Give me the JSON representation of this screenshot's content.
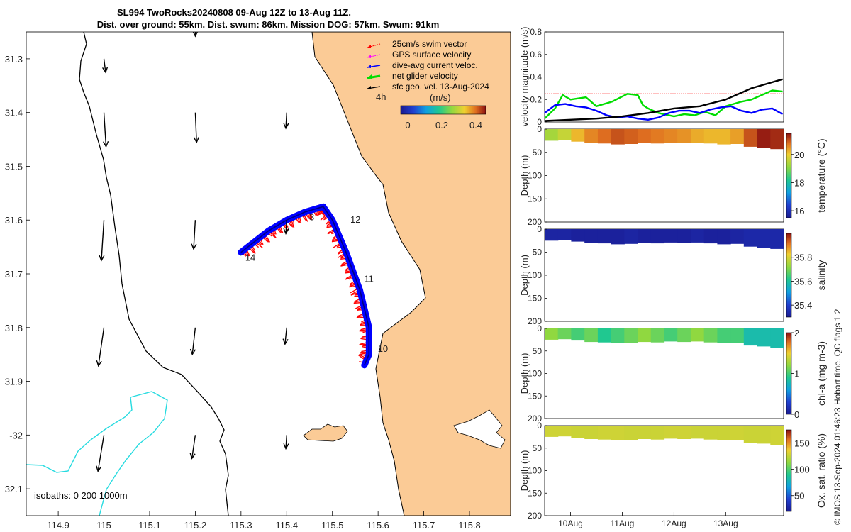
{
  "chart_data": [
    {
      "type": "map",
      "title_line1": "SL994 TwoRocks20240808 09-Aug 12Z to 13-Aug 11Z.",
      "title_line2": "Dist. over ground: 55km. Dist. swum: 86km. Mission DOG: 57km. Swum: 91km",
      "xlim": [
        114.83,
        115.89
      ],
      "ylim": [
        -32.15,
        -31.25
      ],
      "xticks": [
        114.9,
        115,
        115.1,
        115.2,
        115.3,
        115.4,
        115.5,
        115.6,
        115.7,
        115.8
      ],
      "xtick_labels": [
        "114.9",
        "115",
        "115.1",
        "115.2",
        "115.3",
        "115.4",
        "115.5",
        "115.6",
        "115.7",
        "115.8"
      ],
      "yticks": [
        -31.3,
        -31.4,
        -31.5,
        -31.6,
        -31.7,
        -31.8,
        -31.9,
        -32,
        -32.1
      ],
      "ytick_labels": [
        "31.3",
        "31.4",
        "31.5",
        "31.6",
        "31.7",
        "31.8",
        "31.9",
        "-32",
        "32.1"
      ],
      "legend": [
        {
          "label": "25cm/s swim vector",
          "color": "#ff0000"
        },
        {
          "label": "GPS surface velocity",
          "color": "#ff00ff"
        },
        {
          "label": "dive-avg current veloc.",
          "color": "#0000ff"
        },
        {
          "label": "net glider velocity",
          "color": "#00dd00"
        },
        {
          "label": "sfc geo. vel. 13-Aug-2024",
          "color": "#000000"
        }
      ],
      "scale_label": "4h",
      "colorbar_label": "(m/s)",
      "colorbar_ticks": [
        "0",
        "0.2",
        "0.4"
      ],
      "isobath_note": "isobaths: 0   200  1000m",
      "track": {
        "lon": [
          115.3,
          115.33,
          115.36,
          115.4,
          115.44,
          115.48,
          115.5,
          115.53,
          115.56,
          115.58,
          115.58,
          115.57
        ],
        "lat": [
          -31.66,
          -31.64,
          -31.62,
          -31.6,
          -31.585,
          -31.575,
          -31.6,
          -31.66,
          -31.73,
          -31.8,
          -31.85,
          -31.87
        ],
        "day_labels": [
          {
            "label": "14",
            "lon": 115.3,
            "lat": -31.67
          },
          {
            "label": "3",
            "lon": 115.44,
            "lat": -31.595
          },
          {
            "label": "12",
            "lon": 115.53,
            "lat": -31.6
          },
          {
            "label": "11",
            "lon": 115.56,
            "lat": -31.71
          },
          {
            "label": "10",
            "lon": 115.59,
            "lat": -31.84
          }
        ]
      },
      "geo_vectors": [
        {
          "lon": 115.0,
          "lat": -31.3,
          "u": 0.4,
          "v": -3.2
        },
        {
          "lon": 115.0,
          "lat": -31.4,
          "u": 0.5,
          "v": -8.0
        },
        {
          "lon": 115.2,
          "lat": -31.4,
          "u": 0.3,
          "v": -7.0
        },
        {
          "lon": 115.4,
          "lat": -31.4,
          "u": -0.2,
          "v": -3.7
        },
        {
          "lon": 115.0,
          "lat": -31.6,
          "u": -0.6,
          "v": -9.5
        },
        {
          "lon": 115.2,
          "lat": -31.6,
          "u": -0.4,
          "v": -6.8
        },
        {
          "lon": 115.4,
          "lat": -31.6,
          "u": -0.2,
          "v": -3.2
        },
        {
          "lon": 115.0,
          "lat": -31.8,
          "u": -1.3,
          "v": -9.0
        },
        {
          "lon": 115.2,
          "lat": -31.8,
          "u": -0.7,
          "v": -6.3
        },
        {
          "lon": 115.4,
          "lat": -31.8,
          "u": -0.4,
          "v": -3.9
        },
        {
          "lon": 115.0,
          "lat": -32.0,
          "u": -1.4,
          "v": -8.5
        },
        {
          "lon": 115.2,
          "lat": -32.0,
          "u": -0.8,
          "v": -5.5
        },
        {
          "lon": 115.4,
          "lat": -32.0,
          "u": -0.2,
          "v": -3.2
        },
        {
          "lon": 115.2,
          "lat": -31.25,
          "u": 0.0,
          "v": -1.0
        }
      ]
    },
    {
      "type": "line",
      "ylabel": "velocity magnitude (m/s)",
      "ylim": [
        0,
        0.8
      ],
      "yticks": [
        "0",
        "0.2",
        "0.4",
        "0.6",
        "0.8"
      ],
      "xlim": [
        0,
        4.62
      ],
      "series": [
        {
          "name": "swim speed 25cm/s",
          "color": "#ff0000",
          "x": [
            0,
            4.62
          ],
          "values": [
            0.25,
            0.25
          ]
        },
        {
          "name": "net glider velocity",
          "color": "#00dd00",
          "x": [
            0.0,
            0.2,
            0.35,
            0.5,
            0.8,
            1.0,
            1.3,
            1.6,
            1.8,
            1.9,
            2.0,
            2.2,
            2.5,
            2.7,
            2.9,
            3.1,
            3.3,
            3.5,
            3.8,
            4.0,
            4.2,
            4.4,
            4.6
          ],
          "values": [
            0.03,
            0.12,
            0.24,
            0.2,
            0.22,
            0.14,
            0.18,
            0.25,
            0.24,
            0.15,
            0.12,
            0.08,
            0.05,
            0.07,
            0.06,
            0.09,
            0.06,
            0.14,
            0.18,
            0.2,
            0.24,
            0.28,
            0.27
          ]
        },
        {
          "name": "dive-avg current",
          "color": "#0000ff",
          "x": [
            0.0,
            0.2,
            0.4,
            0.6,
            0.8,
            1.0,
            1.2,
            1.4,
            1.6,
            1.8,
            2.0,
            2.2,
            2.4,
            2.6,
            2.8,
            3.0,
            3.2,
            3.4,
            3.6,
            3.8,
            4.0,
            4.2,
            4.4,
            4.6
          ],
          "values": [
            0.08,
            0.15,
            0.16,
            0.14,
            0.13,
            0.1,
            0.06,
            0.04,
            0.05,
            0.03,
            0.02,
            0.04,
            0.08,
            0.1,
            0.1,
            0.08,
            0.11,
            0.13,
            0.14,
            0.1,
            0.08,
            0.11,
            0.12,
            0.07
          ]
        },
        {
          "name": "sfc geo. vel.",
          "color": "#000000",
          "x": [
            0.0,
            0.5,
            1.0,
            1.5,
            2.0,
            2.5,
            3.0,
            3.5,
            4.0,
            4.3,
            4.6
          ],
          "values": [
            0.01,
            0.02,
            0.03,
            0.05,
            0.08,
            0.12,
            0.14,
            0.2,
            0.3,
            0.34,
            0.38
          ]
        }
      ]
    },
    {
      "type": "heatmap",
      "ylabel": "Depth (m)",
      "cbar_label": "temperature (°C)",
      "ylim": [
        0,
        200
      ],
      "yticks": [
        "0",
        "50",
        "100",
        "150",
        "200"
      ],
      "clim": [
        15.5,
        21.5
      ],
      "cbar_ticks": [
        "16",
        "18",
        "20"
      ],
      "cbar_tick_values": [
        16,
        18,
        20
      ],
      "profile_depths": [
        25,
        24,
        27,
        30,
        31,
        33,
        32,
        30,
        31,
        29,
        30,
        29,
        31,
        33,
        32,
        38,
        40,
        43
      ],
      "values": [
        19.3,
        19.6,
        20.2,
        20.6,
        20.8,
        21.0,
        20.9,
        20.8,
        20.7,
        20.6,
        20.5,
        20.3,
        20.2,
        20.2,
        20.4,
        21.0,
        21.4,
        21.3
      ]
    },
    {
      "type": "heatmap",
      "ylabel": "Depth (m)",
      "cbar_label": "salinity",
      "ylim": [
        0,
        200
      ],
      "yticks": [
        "0",
        "50",
        "100",
        "150",
        "200"
      ],
      "clim": [
        35.3,
        36.0
      ],
      "cbar_ticks": [
        "35.4",
        "35.6",
        "35.8"
      ],
      "cbar_tick_values": [
        35.4,
        35.6,
        35.8
      ],
      "profile_depths": [
        25,
        24,
        27,
        30,
        31,
        33,
        32,
        30,
        31,
        29,
        30,
        29,
        31,
        33,
        32,
        38,
        40,
        43
      ],
      "values": [
        35.33,
        35.33,
        35.32,
        35.32,
        35.32,
        35.32,
        35.33,
        35.32,
        35.32,
        35.32,
        35.32,
        35.33,
        35.32,
        35.32,
        35.33,
        35.34,
        35.34,
        35.34
      ]
    },
    {
      "type": "heatmap",
      "ylabel": "Depth (m)",
      "cbar_label": "chl-a (mg m-3)",
      "ylim": [
        0,
        200
      ],
      "yticks": [
        "0",
        "50",
        "100",
        "150",
        "200"
      ],
      "clim": [
        0,
        2
      ],
      "cbar_ticks": [
        "0",
        "1",
        "2"
      ],
      "cbar_tick_values": [
        0,
        1,
        2
      ],
      "profile_depths": [
        25,
        24,
        27,
        30,
        31,
        33,
        32,
        30,
        31,
        29,
        30,
        29,
        31,
        33,
        32,
        38,
        40,
        43
      ],
      "values": [
        1.2,
        1.1,
        1.0,
        1.1,
        0.9,
        1.0,
        1.1,
        1.2,
        1.1,
        1.0,
        1.1,
        1.2,
        1.1,
        1.0,
        1.0,
        0.8,
        0.8,
        0.8
      ]
    },
    {
      "type": "heatmap",
      "ylabel": "Depth (m)",
      "cbar_label": "Ox. sat. ratio (%)",
      "ylim": [
        0,
        200
      ],
      "yticks": [
        "0",
        "50",
        "100",
        "150",
        "200"
      ],
      "clim": [
        20,
        175
      ],
      "cbar_ticks": [
        "50",
        "100",
        "150"
      ],
      "cbar_tick_values": [
        50,
        100,
        150
      ],
      "profile_depths": [
        25,
        24,
        27,
        30,
        31,
        33,
        32,
        30,
        31,
        29,
        30,
        29,
        31,
        33,
        32,
        38,
        40,
        43
      ],
      "values": [
        128,
        128,
        127,
        127,
        128,
        128,
        127,
        127,
        127,
        128,
        128,
        127,
        127,
        127,
        128,
        127,
        127,
        128
      ]
    }
  ],
  "time_axis": {
    "xlim": [
      0,
      4.62
    ],
    "ticks": [
      {
        "label": "10Aug",
        "x": 0.5
      },
      {
        "label": "11Aug",
        "x": 1.5
      },
      {
        "label": "12Aug",
        "x": 2.5
      },
      {
        "label": "13Aug",
        "x": 3.5
      }
    ]
  },
  "credit": "© IMOS 13-Sep-2024 01:46:23 Hobart time. QC flags 1  2"
}
